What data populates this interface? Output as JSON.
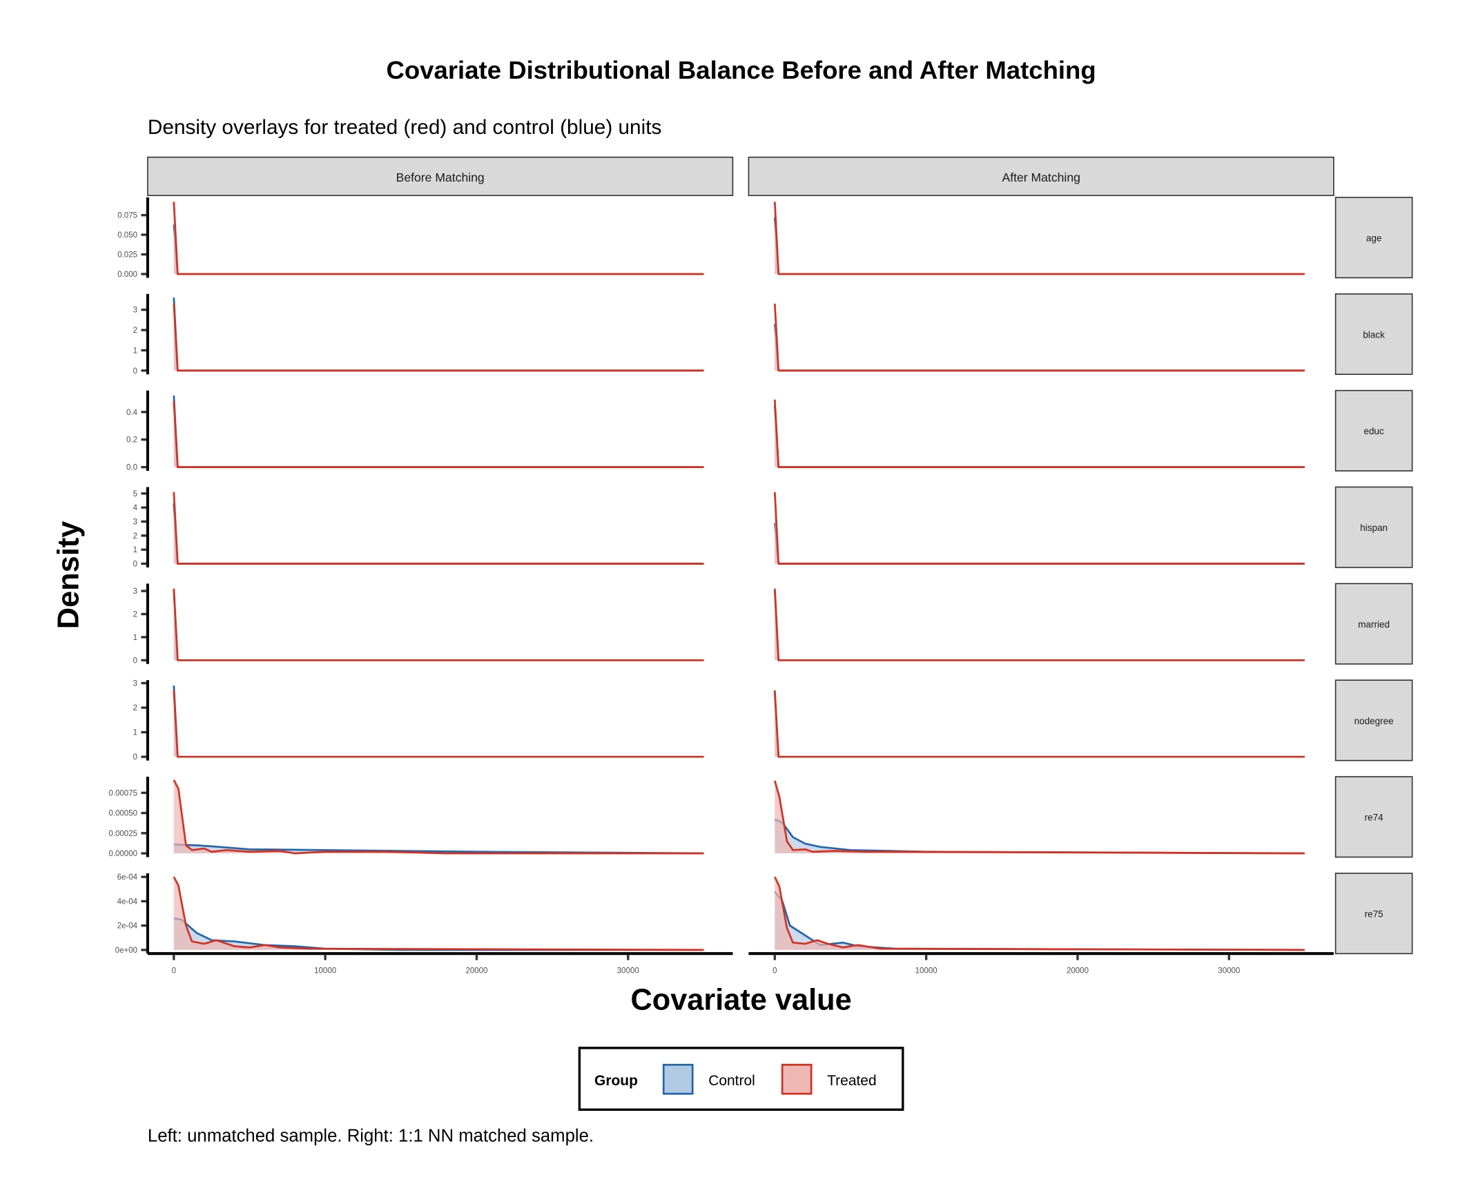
{
  "title": "Covariate Distributional Balance Before and After Matching",
  "subtitle": "Density overlays for treated (red) and control (blue) units",
  "caption": "Left: unmatched sample. Right: 1:1 NN matched sample.",
  "colors": {
    "control": "#2166ac",
    "treated": "#d7301f",
    "control_fill": "#b3cae3",
    "treated_fill": "#f0b8b3"
  },
  "legend": {
    "title": "Group",
    "items": [
      "Control",
      "Treated"
    ]
  },
  "chart_data": {
    "type": "area",
    "title": "Covariate Distributional Balance Before and After Matching",
    "xlabel": "Covariate value",
    "ylabel": "Density",
    "xlim": [
      -1700,
      37000
    ],
    "x_ticks": [
      0,
      10000,
      20000,
      30000
    ],
    "x_tick_labels": [
      "0",
      "10000",
      "20000",
      "30000"
    ],
    "columns": [
      "Before Matching",
      "After Matching"
    ],
    "legend_position": "bottom",
    "grid": false,
    "facets": [
      {
        "name": "age",
        "ylim": [
          0,
          0.0976
        ],
        "ticks": [
          0,
          0.025,
          0.05,
          0.075
        ],
        "tick_labels": [
          "0.000",
          "0.025",
          "0.050",
          "0.075"
        ],
        "before": {
          "Control": [
            [
              0,
              0.063
            ],
            [
              250,
              0
            ],
            [
              35000,
              0
            ]
          ],
          "Treated": [
            [
              0,
              0.092
            ],
            [
              250,
              0
            ],
            [
              35000,
              0
            ]
          ]
        },
        "after": {
          "Control": [
            [
              0,
              0.072
            ],
            [
              250,
              0
            ],
            [
              35000,
              0
            ]
          ],
          "Treated": [
            [
              0,
              0.092
            ],
            [
              250,
              0
            ],
            [
              35000,
              0
            ]
          ]
        }
      },
      {
        "name": "black",
        "ylim": [
          0,
          3.78
        ],
        "ticks": [
          0,
          1,
          2,
          3
        ],
        "tick_labels": [
          "0",
          "1",
          "2",
          "3"
        ],
        "before": {
          "Control": [
            [
              0,
              3.6
            ],
            [
              250,
              0
            ],
            [
              35000,
              0
            ]
          ],
          "Treated": [
            [
              0,
              3.3
            ],
            [
              250,
              0
            ],
            [
              35000,
              0
            ]
          ]
        },
        "after": {
          "Control": [
            [
              0,
              2.3
            ],
            [
              250,
              0
            ],
            [
              35000,
              0
            ]
          ],
          "Treated": [
            [
              0,
              3.3
            ],
            [
              250,
              0
            ],
            [
              35000,
              0
            ]
          ]
        }
      },
      {
        "name": "educ",
        "ylim": [
          0,
          0.556
        ],
        "ticks": [
          0,
          0.2,
          0.4
        ],
        "tick_labels": [
          "0.0",
          "0.2",
          "0.4"
        ],
        "before": {
          "Control": [
            [
              0,
              0.52
            ],
            [
              250,
              0
            ],
            [
              35000,
              0
            ]
          ],
          "Treated": [
            [
              0,
              0.48
            ],
            [
              250,
              0
            ],
            [
              35000,
              0
            ]
          ]
        },
        "after": {
          "Control": [
            [
              0,
              0.45
            ],
            [
              250,
              0
            ],
            [
              35000,
              0
            ]
          ],
          "Treated": [
            [
              0,
              0.49
            ],
            [
              250,
              0
            ],
            [
              35000,
              0
            ]
          ]
        }
      },
      {
        "name": "hispan",
        "ylim": [
          0,
          5.46
        ],
        "ticks": [
          0,
          1,
          2,
          3,
          4,
          5
        ],
        "tick_labels": [
          "0",
          "1",
          "2",
          "3",
          "4",
          "5"
        ],
        "before": {
          "Control": [
            [
              0,
              4.3
            ],
            [
              250,
              0
            ],
            [
              35000,
              0
            ]
          ],
          "Treated": [
            [
              0,
              5.1
            ],
            [
              250,
              0
            ],
            [
              35000,
              0
            ]
          ]
        },
        "after": {
          "Control": [
            [
              0,
              2.9
            ],
            [
              250,
              0
            ],
            [
              35000,
              0
            ]
          ],
          "Treated": [
            [
              0,
              5.1
            ],
            [
              250,
              0
            ],
            [
              35000,
              0
            ]
          ]
        }
      },
      {
        "name": "married",
        "ylim": [
          0,
          3.32
        ],
        "ticks": [
          0,
          1,
          2,
          3
        ],
        "tick_labels": [
          "0",
          "1",
          "2",
          "3"
        ],
        "before": {
          "Control": [
            [
              0,
              3.0
            ],
            [
              250,
              0
            ],
            [
              35000,
              0
            ]
          ],
          "Treated": [
            [
              0,
              3.1
            ],
            [
              250,
              0
            ],
            [
              35000,
              0
            ]
          ]
        },
        "after": {
          "Control": [
            [
              0,
              3.0
            ],
            [
              250,
              0
            ],
            [
              35000,
              0
            ]
          ],
          "Treated": [
            [
              0,
              3.1
            ],
            [
              250,
              0
            ],
            [
              35000,
              0
            ]
          ]
        }
      },
      {
        "name": "nodegree",
        "ylim": [
          0,
          3.12
        ],
        "ticks": [
          0,
          1,
          2,
          3
        ],
        "tick_labels": [
          "0",
          "1",
          "2",
          "3"
        ],
        "before": {
          "Control": [
            [
              0,
              2.9
            ],
            [
              250,
              0
            ],
            [
              35000,
              0
            ]
          ],
          "Treated": [
            [
              0,
              2.7
            ],
            [
              250,
              0
            ],
            [
              35000,
              0
            ]
          ]
        },
        "after": {
          "Control": [
            [
              0,
              2.6
            ],
            [
              250,
              0
            ],
            [
              35000,
              0
            ]
          ],
          "Treated": [
            [
              0,
              2.7
            ],
            [
              250,
              0
            ],
            [
              35000,
              0
            ]
          ]
        }
      },
      {
        "name": "re74",
        "ylim": [
          0,
          0.00095
        ],
        "ticks": [
          0,
          0.00025,
          0.0005,
          0.00075
        ],
        "tick_labels": [
          "0.00000",
          "0.00025",
          "0.00050",
          "0.00075"
        ],
        "before": {
          "Control": [
            [
              0,
              0.00011
            ],
            [
              1500,
              0.0001
            ],
            [
              3000,
              8e-05
            ],
            [
              5000,
              5e-05
            ],
            [
              10000,
              4e-05
            ],
            [
              20000,
              2e-05
            ],
            [
              35000,
              0
            ]
          ],
          "Treated": [
            [
              0,
              0.00091
            ],
            [
              300,
              0.0008
            ],
            [
              800,
              0.0001
            ],
            [
              1200,
              4e-05
            ],
            [
              2000,
              6e-05
            ],
            [
              2500,
              2e-05
            ],
            [
              3500,
              4e-05
            ],
            [
              5000,
              2e-05
            ],
            [
              7000,
              3e-05
            ],
            [
              8000,
              0
            ],
            [
              10000,
              2e-05
            ],
            [
              14000,
              2e-05
            ],
            [
              18000,
              0
            ],
            [
              35000,
              0
            ]
          ]
        },
        "after": {
          "Control": [
            [
              0,
              0.00042
            ],
            [
              500,
              0.00038
            ],
            [
              1200,
              0.0002
            ],
            [
              2000,
              0.00012
            ],
            [
              3000,
              8e-05
            ],
            [
              5000,
              4e-05
            ],
            [
              10000,
              2e-05
            ],
            [
              35000,
              0
            ]
          ],
          "Treated": [
            [
              0,
              0.0009
            ],
            [
              300,
              0.0007
            ],
            [
              800,
              0.00015
            ],
            [
              1200,
              4e-05
            ],
            [
              2000,
              5e-05
            ],
            [
              2500,
              2e-05
            ],
            [
              4000,
              3e-05
            ],
            [
              6000,
              2e-05
            ],
            [
              8000,
              2e-05
            ],
            [
              35000,
              0
            ]
          ]
        }
      },
      {
        "name": "re75",
        "ylim": [
          0,
          0.00063
        ],
        "ticks": [
          0,
          0.0002,
          0.0004,
          0.0006
        ],
        "tick_labels": [
          "0e+00",
          "2e-04",
          "4e-04",
          "6e-04"
        ],
        "before": {
          "Control": [
            [
              0,
              0.00026
            ],
            [
              500,
              0.00025
            ],
            [
              1500,
              0.00014
            ],
            [
              2500,
              8e-05
            ],
            [
              4000,
              7e-05
            ],
            [
              6000,
              4e-05
            ],
            [
              8000,
              3e-05
            ],
            [
              10000,
              1e-05
            ],
            [
              15000,
              0
            ],
            [
              35000,
              0
            ]
          ],
          "Treated": [
            [
              0,
              0.0006
            ],
            [
              300,
              0.00053
            ],
            [
              800,
              0.0002
            ],
            [
              1200,
              7e-05
            ],
            [
              2000,
              5e-05
            ],
            [
              2800,
              8e-05
            ],
            [
              4000,
              3e-05
            ],
            [
              5000,
              2e-05
            ],
            [
              6000,
              4e-05
            ],
            [
              7000,
              2e-05
            ],
            [
              9000,
              1e-05
            ],
            [
              35000,
              0
            ]
          ]
        },
        "after": {
          "Control": [
            [
              0,
              0.00048
            ],
            [
              500,
              0.0004
            ],
            [
              1000,
              0.0002
            ],
            [
              2000,
              0.00012
            ],
            [
              3000,
              4e-05
            ],
            [
              4500,
              6e-05
            ],
            [
              5500,
              3e-05
            ],
            [
              8000,
              1e-05
            ],
            [
              35000,
              0
            ]
          ],
          "Treated": [
            [
              0,
              0.0006
            ],
            [
              300,
              0.00052
            ],
            [
              800,
              0.00018
            ],
            [
              1200,
              6e-05
            ],
            [
              2000,
              5e-05
            ],
            [
              2800,
              8e-05
            ],
            [
              3500,
              5e-05
            ],
            [
              4500,
              2e-05
            ],
            [
              5500,
              4e-05
            ],
            [
              7000,
              1e-05
            ],
            [
              35000,
              0
            ]
          ]
        }
      }
    ]
  }
}
